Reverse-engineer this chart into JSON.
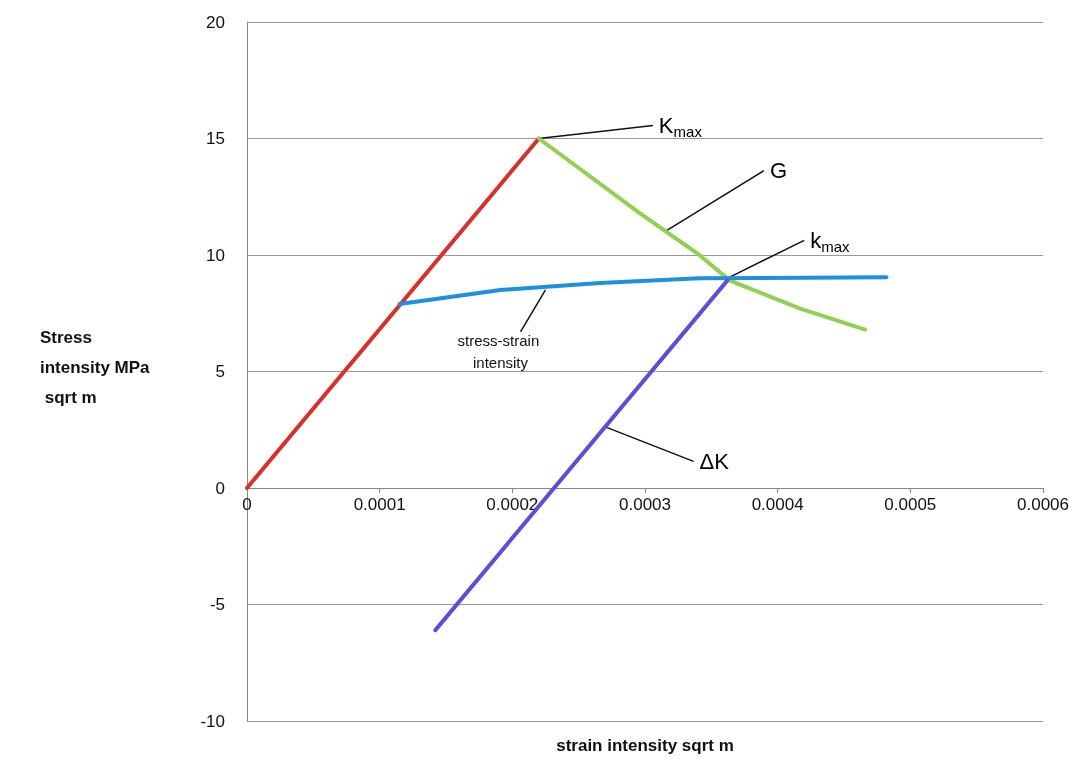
{
  "chart_data": {
    "type": "line",
    "xlabel": "strain intensity sqrt m",
    "ylabel": "Stress intensity MPa sqrt m",
    "series": [
      {
        "color": "#d9302c",
        "x": [
          0,
          0.00022
        ],
        "values": [
          0,
          15
        ]
      },
      {
        "color": "#92d050",
        "x": [
          0.00022,
          0.000296,
          0.000341,
          0.000364,
          0.000417,
          0.000466
        ],
        "values": [
          15,
          11.8,
          10.0,
          8.9,
          7.7,
          6.8
        ]
      },
      {
        "color": "#1e90e0",
        "x": [
          0.000115,
          0.000191,
          0.000266,
          0.000341,
          0.000482
        ],
        "values": [
          7.9,
          8.5,
          8.8,
          9.0,
          9.05
        ]
      },
      {
        "color": "#5b4fd6",
        "x": [
          0.000142,
          0.000362
        ],
        "values": [
          -6.1,
          8.9
        ]
      }
    ],
    "xlim": [
      0,
      0.0006
    ],
    "xticks": [
      0,
      0.0001,
      0.0002,
      0.0003,
      0.0004,
      0.0005,
      0.0006
    ],
    "ylim": [
      -10,
      20
    ],
    "yticks": [
      -10,
      -5,
      0,
      5,
      10,
      15,
      20
    ],
    "grid": "y",
    "marker": "none",
    "line_style": "solid",
    "annotations": [
      {
        "text": "K$_{max}$",
        "x": 0.00022,
        "y": 15
      },
      {
        "text": "G",
        "x": 0.000315,
        "y": 11.0
      },
      {
        "text": "k$_{max}$",
        "x": 0.000362,
        "y": 9.0
      },
      {
        "text": "stress-strain intensity",
        "x": 0.000225,
        "y": 8.5
      },
      {
        "text": "ΔK",
        "x": 0.000271,
        "y": 2.6
      }
    ]
  }
}
